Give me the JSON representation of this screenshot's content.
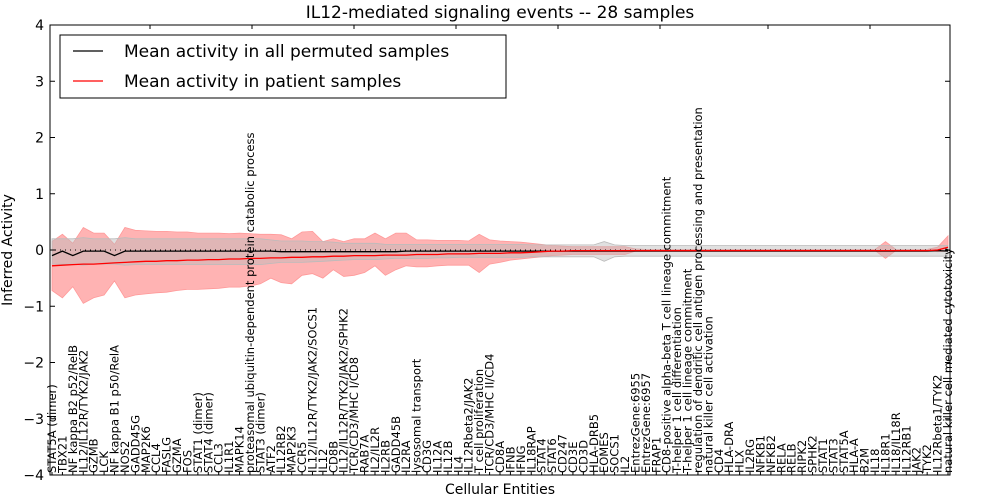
{
  "chart_data": {
    "type": "line",
    "title": "IL12-mediated signaling events -- 28 samples",
    "xlabel": "Cellular Entities",
    "ylabel": "Inferred Activity",
    "ylim": [
      -4,
      4
    ],
    "yticks": [
      -4,
      -3,
      -2,
      -1,
      0,
      1,
      2,
      3,
      4
    ],
    "ytick_labels": [
      "−4",
      "−3",
      "−2",
      "−1",
      "0",
      "1",
      "2",
      "3",
      "4"
    ],
    "grid": false,
    "legend_position": "top-left",
    "legend": [
      {
        "label": "Mean activity in all permuted samples",
        "color": "#000000"
      },
      {
        "label": "Mean activity in patient samples",
        "color": "#ff0000"
      }
    ],
    "colors": {
      "patient_line": "#ff0000",
      "permuted_line": "#000000",
      "patient_band": "#ff9999",
      "permuted_band": "#bbbbbb",
      "baseline": "#000000"
    },
    "categories": [
      "STAT5A (dimer)",
      "TBX21",
      "NF kappa B2 p52/RelB",
      "IL12/IL12R/TYK2/JAK2",
      "GZMB",
      "LCK",
      "NF kappa B1 p50/RelA",
      "NOS2",
      "GADD45G",
      "MAP2K6",
      "CCL4",
      "FASLG",
      "GZMA",
      "FOS",
      "STAT1 (dimer)",
      "STAT4 (dimer)",
      "CCL3",
      "IL1R1",
      "MAPK14",
      "proteasomal ubiquitin-dependent protein catabolic process",
      "STAT3 (dimer)",
      "ATF2",
      "IL12RB2",
      "MAP2K3",
      "CCR5",
      "IL12/IL12R/TYK2/JAK2/SOCS1",
      "IL12",
      "CD8B",
      "IL12/IL12R/TYK2/JAK2/SPHK2",
      "TCR/CD3/MHC I/CD8",
      "RAB7A",
      "IL2/IL2R",
      "IL2RB",
      "GADD45B",
      "IL2RA",
      "lysosomal transport",
      "CD3G",
      "IL12A",
      "IL12B",
      "IL4",
      "IL12Rbeta2/JAK2",
      "T cell proliferation",
      "TCR/CD3/MHC II/CD4",
      "CD8A",
      "IFNB",
      "IFNG",
      "IL18RAP",
      "STAT4",
      "STAT6",
      "CD247",
      "CD3E",
      "CD3D",
      "HLA-DRB5",
      "EOMES",
      "SOCS1",
      "IL2",
      "EntrezGene:6955",
      "EntrezGene:6957",
      "FRAP1",
      "CD8-positive alpha-beta T cell lineage commitment",
      "T-helper 1 cell differentiation",
      "T-helper 1 cell lineage commitment",
      "regulation of dendritic cell antigen processing and presentation",
      "natural killer cell activation",
      "CD4",
      "HLA-DRA",
      "HLX",
      "IL2RG",
      "NFKB1",
      "NFKB2",
      "RELA",
      "RELB",
      "RIPK2",
      "SPHK2",
      "STAT1",
      "STAT3",
      "STAT5A",
      "HLA-A",
      "B2M",
      "IL18",
      "IL18R1",
      "IL18/IL18R",
      "IL12RB1",
      "JAK2",
      "TYK2",
      "IL12Rbeta1/TYK2",
      "natural killer cell mediated cytotoxicity"
    ],
    "series": [
      {
        "name": "Mean activity in all permuted samples",
        "values": [
          -0.1,
          -0.02,
          -0.1,
          -0.02,
          -0.02,
          -0.02,
          -0.1,
          -0.02,
          -0.02,
          -0.02,
          -0.02,
          -0.02,
          -0.02,
          -0.02,
          -0.02,
          -0.02,
          -0.02,
          -0.02,
          -0.02,
          -0.02,
          -0.02,
          -0.02,
          -0.03,
          -0.03,
          -0.03,
          -0.03,
          -0.03,
          -0.03,
          -0.03,
          -0.03,
          -0.03,
          -0.03,
          -0.03,
          -0.03,
          -0.02,
          -0.02,
          -0.02,
          -0.02,
          -0.02,
          -0.02,
          -0.02,
          -0.02,
          -0.02,
          -0.02,
          -0.02,
          -0.02,
          -0.02,
          -0.02,
          -0.02,
          -0.02,
          -0.02,
          -0.02,
          -0.02,
          -0.02,
          -0.02,
          -0.02,
          -0.02,
          -0.02,
          -0.02,
          -0.02,
          -0.02,
          -0.02,
          -0.02,
          -0.02,
          -0.02,
          -0.02,
          -0.02,
          -0.02,
          -0.02,
          -0.02,
          -0.02,
          -0.02,
          -0.02,
          -0.02,
          -0.02,
          -0.02,
          -0.02,
          -0.02,
          -0.02,
          -0.02,
          -0.02,
          -0.02,
          -0.02,
          -0.02,
          -0.02,
          -0.01,
          -0.02
        ]
      },
      {
        "name": "Mean activity in patient samples",
        "values": [
          -0.28,
          -0.27,
          -0.26,
          -0.25,
          -0.25,
          -0.24,
          -0.23,
          -0.22,
          -0.21,
          -0.2,
          -0.2,
          -0.19,
          -0.19,
          -0.18,
          -0.18,
          -0.17,
          -0.17,
          -0.16,
          -0.16,
          -0.15,
          -0.15,
          -0.14,
          -0.14,
          -0.13,
          -0.13,
          -0.12,
          -0.12,
          -0.11,
          -0.11,
          -0.1,
          -0.1,
          -0.1,
          -0.09,
          -0.09,
          -0.09,
          -0.08,
          -0.08,
          -0.08,
          -0.07,
          -0.07,
          -0.07,
          -0.06,
          -0.06,
          -0.06,
          -0.05,
          -0.05,
          -0.04,
          -0.03,
          -0.02,
          -0.02,
          -0.01,
          -0.01,
          -0.01,
          -0.01,
          -0.01,
          -0.01,
          -0.01,
          -0.01,
          -0.01,
          -0.01,
          -0.01,
          -0.01,
          -0.01,
          -0.01,
          -0.01,
          -0.01,
          -0.01,
          -0.01,
          -0.01,
          -0.01,
          -0.01,
          -0.01,
          -0.01,
          -0.01,
          -0.01,
          -0.01,
          -0.01,
          -0.01,
          -0.01,
          -0.01,
          -0.01,
          -0.01,
          -0.01,
          -0.01,
          -0.01,
          0.0,
          0.05
        ]
      }
    ],
    "bands": [
      {
        "name": "patient spread",
        "upper": [
          0.15,
          0.28,
          0.12,
          0.4,
          0.3,
          0.3,
          0.1,
          0.4,
          0.35,
          0.34,
          0.33,
          0.33,
          0.32,
          0.32,
          0.3,
          0.3,
          0.3,
          0.29,
          0.3,
          0.29,
          0.28,
          0.28,
          0.27,
          0.2,
          0.32,
          0.33,
          0.15,
          0.2,
          0.15,
          0.2,
          0.2,
          0.3,
          0.2,
          0.3,
          0.3,
          0.18,
          0.18,
          0.17,
          0.17,
          0.17,
          0.16,
          0.28,
          0.18,
          0.16,
          0.15,
          0.14,
          0.12,
          0.1,
          0.08,
          0.07,
          0.06,
          0.06,
          0.06,
          0.06,
          0.06,
          0.06,
          0.02,
          0.01,
          0.01,
          0.01,
          0.01,
          0.01,
          0.01,
          0.01,
          0.01,
          0.01,
          0.01,
          0.01,
          0.01,
          0.01,
          0.01,
          0.01,
          0.01,
          0.01,
          0.01,
          0.01,
          0.01,
          0.01,
          0.01,
          0.01,
          0.15,
          0.01,
          0.01,
          0.01,
          0.01,
          0.05,
          0.25
        ],
        "lower": [
          -0.72,
          -0.85,
          -0.65,
          -0.95,
          -0.85,
          -0.8,
          -0.55,
          -0.85,
          -0.8,
          -0.78,
          -0.76,
          -0.75,
          -0.72,
          -0.7,
          -0.7,
          -0.69,
          -0.68,
          -0.66,
          -0.66,
          -0.64,
          -0.6,
          -0.5,
          -0.58,
          -0.6,
          -0.45,
          -0.42,
          -0.5,
          -0.35,
          -0.47,
          -0.45,
          -0.4,
          -0.28,
          -0.45,
          -0.35,
          -0.28,
          -0.3,
          -0.3,
          -0.28,
          -0.27,
          -0.27,
          -0.27,
          -0.4,
          -0.25,
          -0.22,
          -0.18,
          -0.16,
          -0.14,
          -0.12,
          -0.1,
          -0.09,
          -0.08,
          -0.08,
          -0.08,
          -0.08,
          -0.08,
          -0.08,
          -0.02,
          -0.01,
          -0.01,
          -0.01,
          -0.01,
          -0.01,
          -0.01,
          -0.01,
          -0.01,
          -0.01,
          -0.01,
          -0.01,
          -0.01,
          -0.01,
          -0.01,
          -0.01,
          -0.01,
          -0.01,
          -0.01,
          -0.01,
          -0.01,
          -0.01,
          -0.01,
          -0.01,
          -0.15,
          -0.01,
          -0.01,
          -0.01,
          -0.01,
          -0.03,
          -0.02
        ]
      },
      {
        "name": "permuted spread",
        "upper": [
          0.2,
          0.2,
          0.2,
          0.22,
          0.2,
          0.2,
          0.2,
          0.22,
          0.2,
          0.2,
          0.2,
          0.2,
          0.2,
          0.2,
          0.2,
          0.2,
          0.2,
          0.2,
          0.2,
          0.2,
          0.2,
          0.18,
          0.16,
          0.16,
          0.16,
          0.15,
          0.15,
          0.14,
          0.12,
          0.12,
          0.12,
          0.12,
          0.1,
          0.1,
          0.1,
          0.1,
          0.1,
          0.1,
          0.1,
          0.1,
          0.1,
          0.1,
          0.1,
          0.1,
          0.1,
          0.1,
          0.09,
          0.09,
          0.09,
          0.09,
          0.09,
          0.09,
          0.09,
          0.15,
          0.09,
          0.08,
          0.08,
          0.08,
          0.08,
          0.08,
          0.08,
          0.08,
          0.08,
          0.08,
          0.08,
          0.08,
          0.08,
          0.08,
          0.08,
          0.08,
          0.08,
          0.08,
          0.08,
          0.08,
          0.08,
          0.08,
          0.08,
          0.08,
          0.08,
          0.08,
          0.08,
          0.08,
          0.08,
          0.08,
          0.08,
          0.08,
          0.08
        ],
        "lower": [
          -0.25,
          -0.25,
          -0.25,
          -0.27,
          -0.25,
          -0.25,
          -0.25,
          -0.27,
          -0.26,
          -0.26,
          -0.26,
          -0.26,
          -0.26,
          -0.26,
          -0.26,
          -0.26,
          -0.26,
          -0.26,
          -0.26,
          -0.26,
          -0.26,
          -0.24,
          -0.22,
          -0.22,
          -0.22,
          -0.21,
          -0.2,
          -0.19,
          -0.18,
          -0.17,
          -0.17,
          -0.17,
          -0.16,
          -0.15,
          -0.15,
          -0.15,
          -0.15,
          -0.14,
          -0.14,
          -0.13,
          -0.13,
          -0.13,
          -0.13,
          -0.13,
          -0.13,
          -0.13,
          -0.12,
          -0.12,
          -0.12,
          -0.12,
          -0.12,
          -0.12,
          -0.12,
          -0.2,
          -0.12,
          -0.11,
          -0.11,
          -0.11,
          -0.11,
          -0.11,
          -0.11,
          -0.11,
          -0.11,
          -0.11,
          -0.11,
          -0.11,
          -0.11,
          -0.11,
          -0.11,
          -0.11,
          -0.11,
          -0.11,
          -0.11,
          -0.11,
          -0.11,
          -0.11,
          -0.11,
          -0.11,
          -0.11,
          -0.11,
          -0.11,
          -0.11,
          -0.11,
          -0.11,
          -0.11,
          -0.11,
          -0.11
        ]
      }
    ]
  }
}
